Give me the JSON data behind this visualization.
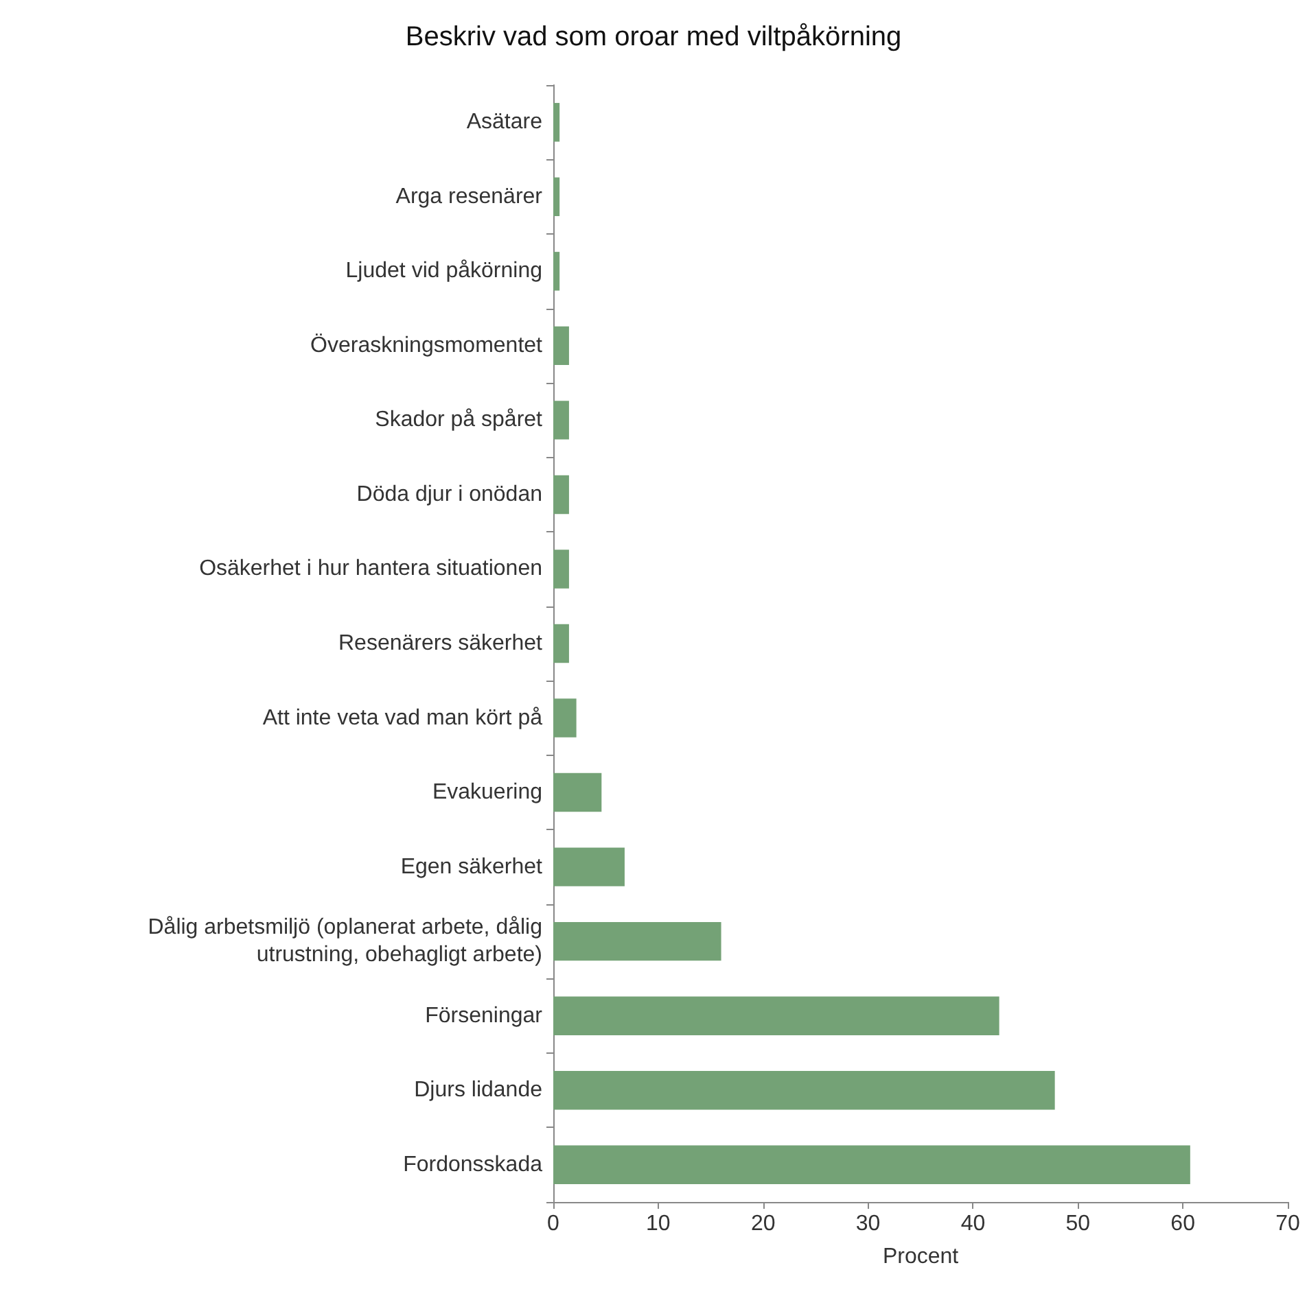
{
  "chart_data": {
    "type": "bar",
    "orientation": "horizontal",
    "title": "Beskriv vad som oroar med viltpåkörning",
    "xlabel": "Procent",
    "categories": [
      "Asätare",
      "Arga resenärer",
      "Ljudet vid påkörning",
      "Överaskningsmomentet",
      "Skador på spåret",
      "Döda djur i onödan",
      "Osäkerhet i hur hantera situationen",
      "Resenärers säkerhet",
      "Att inte veta vad man kört på",
      "Evakuering",
      "Egen säkerhet",
      "Dålig arbetsmiljö (oplanerat arbete, dålig\nutrustning, obehagligt arbete)",
      "Förseningar",
      "Djurs lidande",
      "Fordonsskada"
    ],
    "values": [
      0.6,
      0.6,
      0.6,
      1.5,
      1.5,
      1.5,
      1.5,
      1.5,
      2.2,
      4.6,
      6.8,
      16,
      42.5,
      47.8,
      60.7
    ],
    "color": "#74a276",
    "xlim": [
      0,
      70
    ],
    "xticks": [
      0,
      10,
      20,
      30,
      40,
      50,
      60,
      70
    ]
  }
}
